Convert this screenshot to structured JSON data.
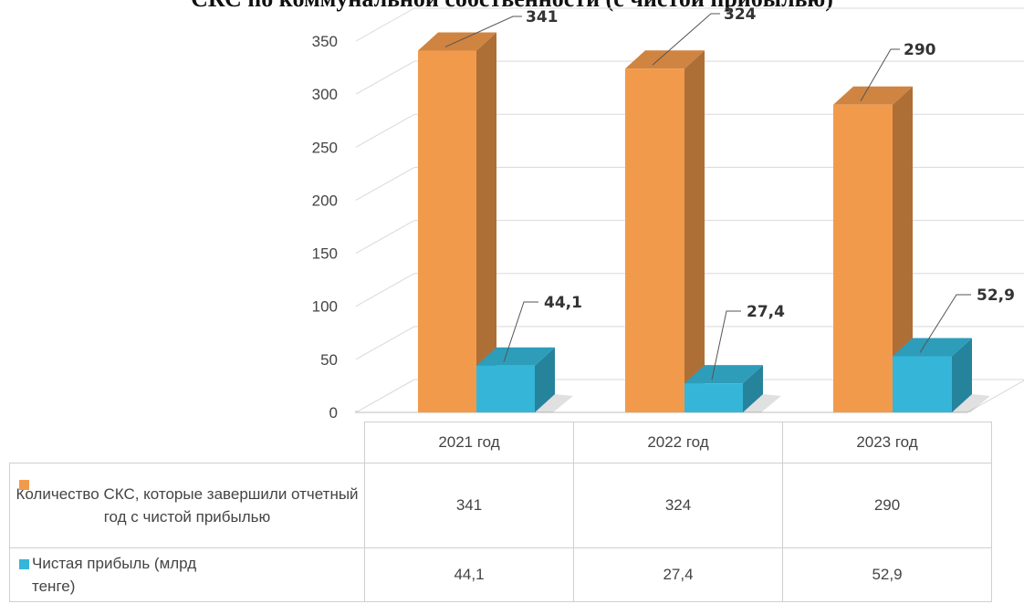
{
  "title": "СКС по коммунальной собственности (с чистой прибылью)",
  "chart_data": {
    "type": "bar",
    "categories": [
      "2021 год",
      "2022 год",
      "2023 год"
    ],
    "series": [
      {
        "name": "Количество СКС, которые завершили отчетный год с чистой прибылью",
        "values": [
          341,
          324,
          290
        ],
        "labels": [
          "341",
          "324",
          "290"
        ],
        "color": "#f29a4c"
      },
      {
        "name": "Чистая прибыль (млрд тенге)",
        "values": [
          44.1,
          27.4,
          52.9
        ],
        "labels": [
          "44,1",
          "27,4",
          "52,9"
        ],
        "color": "#35b6d8"
      }
    ],
    "yticks": [
      "0",
      "50",
      "100",
      "150",
      "200",
      "250",
      "300",
      "350"
    ],
    "ylim": [
      0,
      350
    ],
    "grid": true,
    "style": "3d-column",
    "legend_position": "data-table-left"
  },
  "table": {
    "row1_legend": "Количество СКС, которые завершили отчетный год с чистой прибылью",
    "row2_legend": "Чистая прибыль (млрд тенге)",
    "row1_values": [
      "341",
      "324",
      "290"
    ],
    "row2_values": [
      "44,1",
      "27,4",
      "52,9"
    ]
  }
}
